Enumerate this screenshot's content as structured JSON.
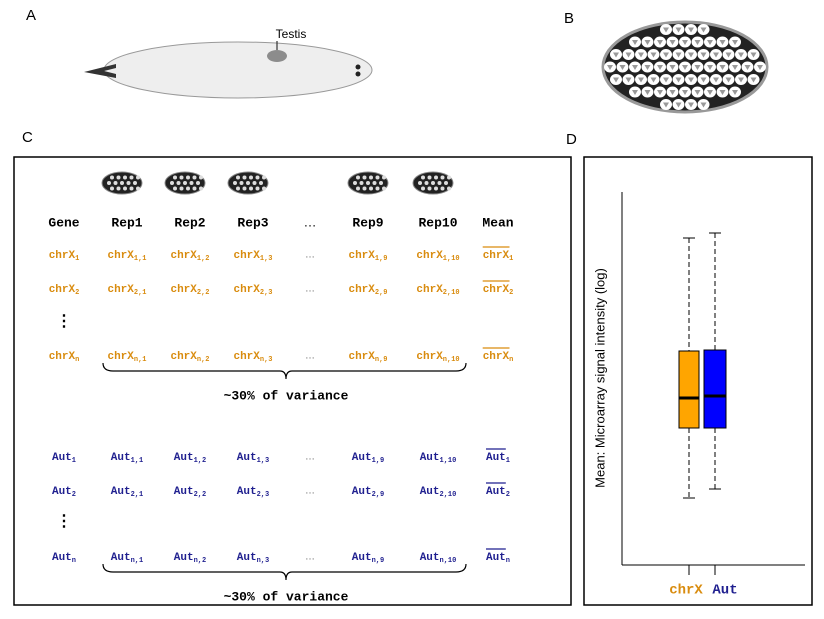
{
  "panels": {
    "a": "A",
    "b": "B",
    "c": "C",
    "d": "D"
  },
  "panel_a": {
    "label": "Testis"
  },
  "panel_c": {
    "header": [
      "Gene",
      "Rep1",
      "Rep2",
      "Rep3",
      "…",
      "Rep9",
      "Rep10",
      "Mean"
    ],
    "groups": [
      {
        "rows": [
          [
            {
              "base": "chrX",
              "sub": "1"
            },
            {
              "base": "chrX",
              "sub": "1,1"
            },
            {
              "base": "chrX",
              "sub": "1,2"
            },
            {
              "base": "chrX",
              "sub": "1,3"
            },
            "…",
            {
              "base": "chrX",
              "sub": "1,9"
            },
            {
              "base": "chrX",
              "sub": "1,10"
            },
            {
              "base": "chrX",
              "sub": "1"
            }
          ],
          [
            {
              "base": "chrX",
              "sub": "2"
            },
            {
              "base": "chrX",
              "sub": "2,1"
            },
            {
              "base": "chrX",
              "sub": "2,2"
            },
            {
              "base": "chrX",
              "sub": "2,3"
            },
            "…",
            {
              "base": "chrX",
              "sub": "2,9"
            },
            {
              "base": "chrX",
              "sub": "2,10"
            },
            {
              "base": "chrX",
              "sub": "2"
            }
          ],
          [
            "⋮"
          ],
          [
            {
              "base": "chrX",
              "sub": "n"
            },
            {
              "base": "chrX",
              "sub": "n,1"
            },
            {
              "base": "chrX",
              "sub": "n,2"
            },
            {
              "base": "chrX",
              "sub": "n,3"
            },
            "…",
            {
              "base": "chrX",
              "sub": "n,9"
            },
            {
              "base": "chrX",
              "sub": "n,10"
            },
            {
              "base": "chrX",
              "sub": "n"
            }
          ]
        ],
        "brace_label": "~30% of variance"
      },
      {
        "rows": [
          [
            {
              "base": "Aut",
              "sub": "1"
            },
            {
              "base": "Aut",
              "sub": "1,1"
            },
            {
              "base": "Aut",
              "sub": "1,2"
            },
            {
              "base": "Aut",
              "sub": "1,3"
            },
            "…",
            {
              "base": "Aut",
              "sub": "1,9"
            },
            {
              "base": "Aut",
              "sub": "1,10"
            },
            {
              "base": "Aut",
              "sub": "1"
            }
          ],
          [
            {
              "base": "Aut",
              "sub": "2"
            },
            {
              "base": "Aut",
              "sub": "2,1"
            },
            {
              "base": "Aut",
              "sub": "2,2"
            },
            {
              "base": "Aut",
              "sub": "2,3"
            },
            "…",
            {
              "base": "Aut",
              "sub": "2,9"
            },
            {
              "base": "Aut",
              "sub": "2,10"
            },
            {
              "base": "Aut",
              "sub": "2"
            }
          ],
          [
            "⋮"
          ],
          [
            {
              "base": "Aut",
              "sub": "n"
            },
            {
              "base": "Aut",
              "sub": "n,1"
            },
            {
              "base": "Aut",
              "sub": "n,2"
            },
            {
              "base": "Aut",
              "sub": "n,3"
            },
            "…",
            {
              "base": "Aut",
              "sub": "n,9"
            },
            {
              "base": "Aut",
              "sub": "n,10"
            },
            {
              "base": "Aut",
              "sub": "n"
            }
          ]
        ],
        "brace_label": "~30% of variance"
      }
    ]
  },
  "panel_d": {
    "y_label": "Mean: Microarray signal intensity (log)",
    "categories": [
      "chrX",
      "Aut"
    ]
  }
}
